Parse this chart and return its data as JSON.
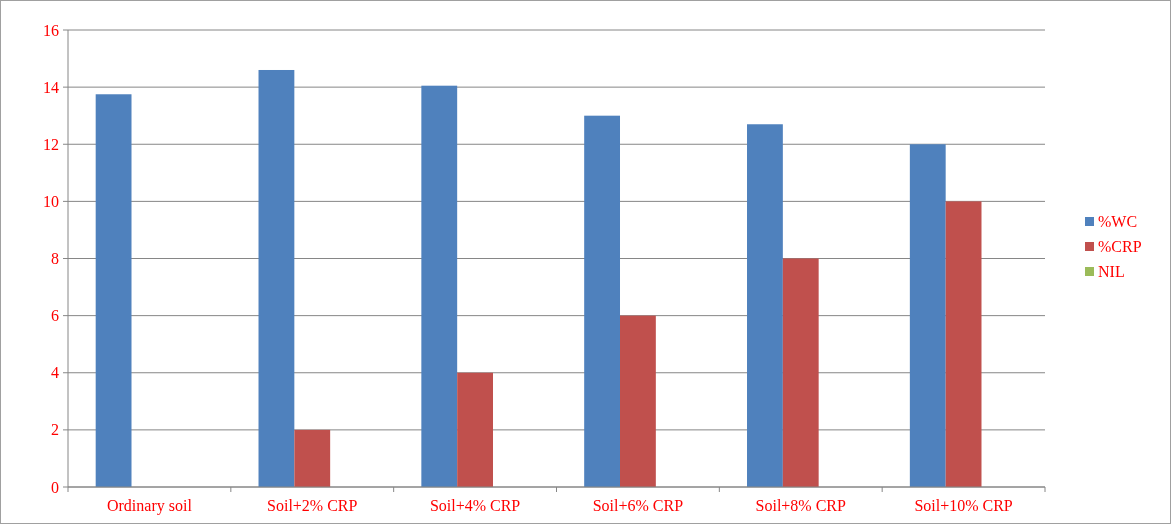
{
  "chart_data": {
    "type": "bar",
    "categories": [
      "Ordinary soil",
      "Soil+2% CRP",
      "Soil+4% CRP",
      "Soil+6% CRP",
      "Soil+8% CRP",
      "Soil+10% CRP"
    ],
    "series": [
      {
        "name": "%WC",
        "color": "#4f81bd",
        "values": [
          13.75,
          14.6,
          14.05,
          13.0,
          12.7,
          12.0
        ]
      },
      {
        "name": "%CRP",
        "color": "#c0504d",
        "values": [
          0,
          2,
          4,
          6,
          8,
          10
        ]
      },
      {
        "name": "NIL",
        "color": "#9bbb59",
        "values": [
          null,
          null,
          null,
          null,
          null,
          null
        ]
      }
    ],
    "ylim": [
      0,
      16
    ],
    "yticks": [
      0,
      2,
      4,
      6,
      8,
      10,
      12,
      14,
      16
    ],
    "grid": "y",
    "legend": "right"
  }
}
